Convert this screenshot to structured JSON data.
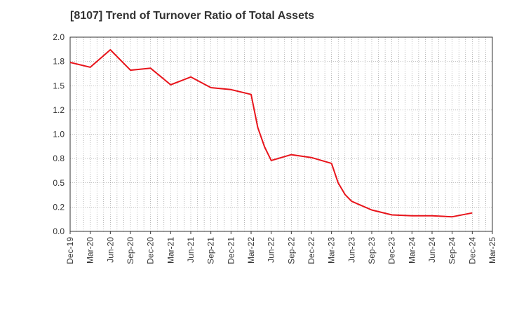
{
  "chart_data": {
    "type": "line",
    "title": "[8107]  Trend of Turnover Ratio of Total Assets",
    "xlabel": "",
    "ylabel": "",
    "ylim": [
      0,
      2.0
    ],
    "yticks": [
      "0.0",
      "0.2",
      "0.5",
      "0.8",
      "1.0",
      "1.2",
      "1.5",
      "1.8",
      "2.0"
    ],
    "categories": [
      "Dec-19",
      "Mar-20",
      "Jun-20",
      "Sep-20",
      "Dec-20",
      "Mar-21",
      "Jun-21",
      "Sep-21",
      "Dec-21",
      "Mar-22",
      "Jun-22",
      "Sep-22",
      "Dec-22",
      "Mar-23",
      "Jun-23",
      "Sep-23",
      "Dec-23",
      "Mar-24",
      "Jun-24",
      "Sep-24",
      "Dec-24",
      "Mar-25"
    ],
    "grid": true,
    "series": [
      {
        "color": "#e8141b",
        "points": [
          {
            "x": 0,
            "y": 1.74
          },
          {
            "x": 1,
            "y": 1.69
          },
          {
            "x": 2,
            "y": 1.87
          },
          {
            "x": 3,
            "y": 1.66
          },
          {
            "x": 4,
            "y": 1.68
          },
          {
            "x": 5,
            "y": 1.51
          },
          {
            "x": 6,
            "y": 1.59
          },
          {
            "x": 7,
            "y": 1.48
          },
          {
            "x": 8,
            "y": 1.46
          },
          {
            "x": 9,
            "y": 1.41
          },
          {
            "x": 9.33,
            "y": 1.07
          },
          {
            "x": 9.67,
            "y": 0.87
          },
          {
            "x": 10,
            "y": 0.73
          },
          {
            "x": 11,
            "y": 0.79
          },
          {
            "x": 12,
            "y": 0.76
          },
          {
            "x": 13,
            "y": 0.7
          },
          {
            "x": 13.33,
            "y": 0.5
          },
          {
            "x": 13.67,
            "y": 0.38
          },
          {
            "x": 14,
            "y": 0.31
          },
          {
            "x": 15,
            "y": 0.22
          },
          {
            "x": 16,
            "y": 0.17
          },
          {
            "x": 17,
            "y": 0.16
          },
          {
            "x": 18,
            "y": 0.16
          },
          {
            "x": 19,
            "y": 0.15
          },
          {
            "x": 20,
            "y": 0.19
          }
        ]
      }
    ]
  }
}
